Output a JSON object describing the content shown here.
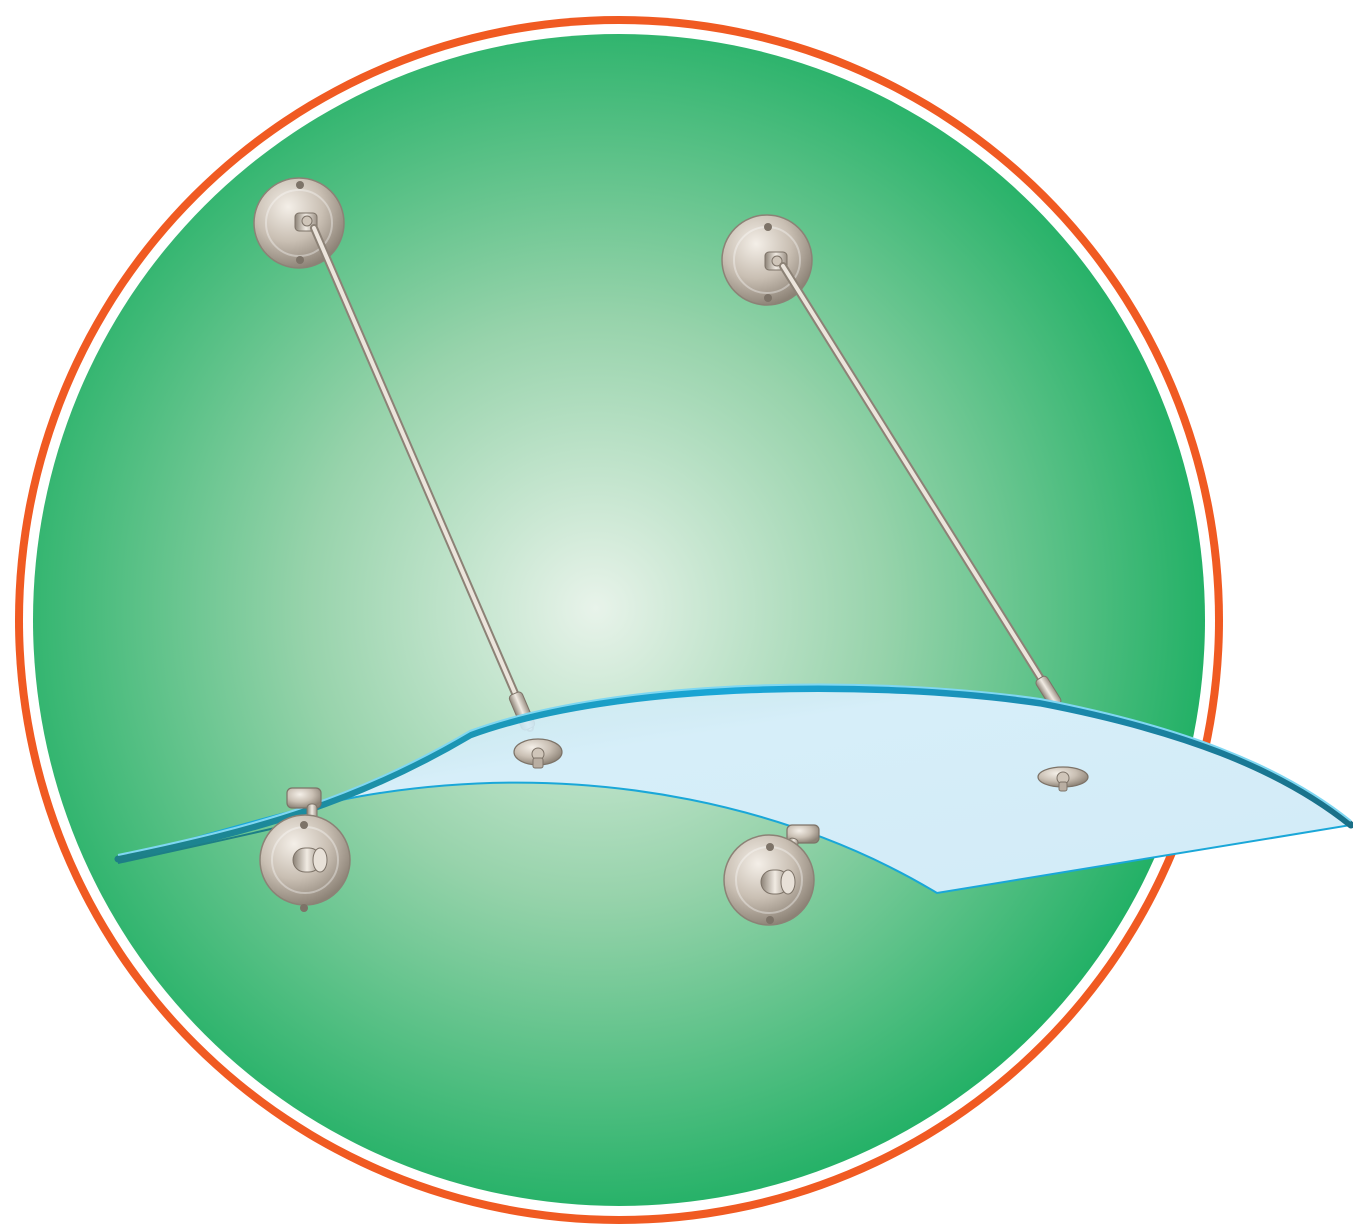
{
  "illustration": {
    "subject": "curved-glass-canopy-with-support-rods",
    "icons": [
      "wall-bracket-icon",
      "support-rod-icon",
      "glass-canopy-icon",
      "glass-clamp-icon"
    ],
    "colors": {
      "outer_ring": "#f05a22",
      "inner_ring": "#ffffff",
      "background_edge": "#17ad5f",
      "background_center": "#e8f3ea",
      "glass_fill": "#d4ecf7",
      "glass_edge": "#1aa7d8",
      "glass_thickness": "#1a8aa6",
      "metal_light": "#f4efe8",
      "metal_mid": "#c9bfb3",
      "metal_dark": "#8c8276"
    }
  }
}
